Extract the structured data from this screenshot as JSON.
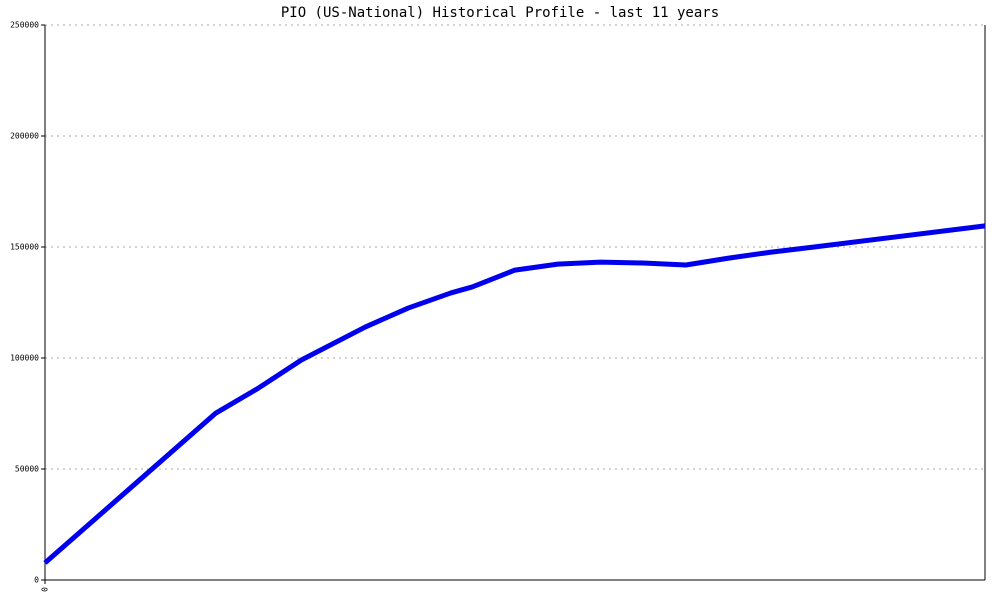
{
  "chart_data": {
    "type": "line",
    "title": "PIO (US-National) Historical Profile - last 11 years",
    "x": [
      0,
      4,
      5,
      6,
      7.5,
      8.5,
      9.5,
      10,
      11,
      12,
      13,
      14,
      15,
      16,
      17,
      18,
      22
    ],
    "series": [
      {
        "color": "#0000ee",
        "values": [
          7700,
          75200,
          86500,
          99100,
          114000,
          122500,
          129300,
          132000,
          139600,
          142300,
          143200,
          142800,
          141900,
          145000,
          147700,
          150000,
          159500
        ]
      }
    ],
    "xlim": [
      0,
      22
    ],
    "xticks": [
      0
    ],
    "ylim": [
      0,
      250000
    ],
    "yticks": [
      0,
      50000,
      100000,
      150000,
      200000,
      250000
    ],
    "grid": true
  }
}
